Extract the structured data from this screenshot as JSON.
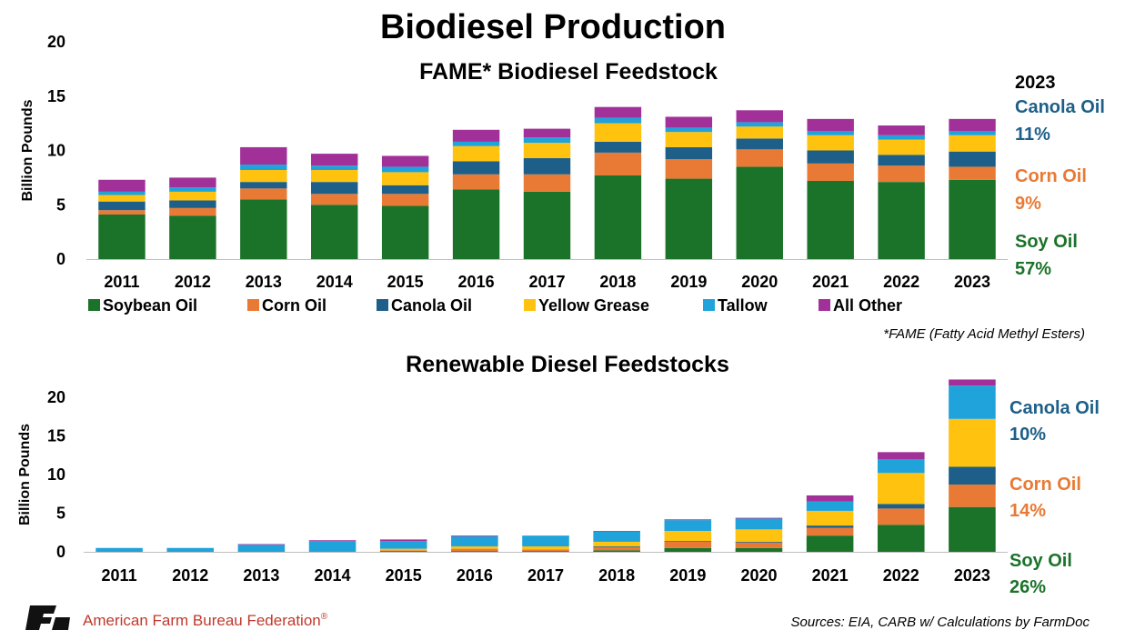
{
  "title": "Biodiesel Production",
  "colors": {
    "Soybean Oil": "#1b7229",
    "Corn Oil": "#e87a35",
    "Canola Oil": "#1d5f88",
    "Yellow Grease": "#ffc20e",
    "Tallow": "#20a3db",
    "All Other": "#a13199",
    "canola_ann": "#1d5f88",
    "corn_ann": "#e87a35",
    "soy_ann": "#1b7229",
    "logo": "#c0392b"
  },
  "legend": [
    "Soybean Oil",
    "Corn Oil",
    "Canola Oil",
    "Yellow Grease",
    "Tallow",
    "All Other"
  ],
  "footnote": "*FAME (Fatty Acid Methyl Esters)",
  "sources": "Sources: EIA, CARB w/ Calculations by FarmDoc",
  "logo": {
    "icon": "fb-logo-icon",
    "text": "American Farm Bureau Federation",
    "mark": "®"
  },
  "chart_data": [
    {
      "type": "bar",
      "stacked": true,
      "title": "FAME* Biodiesel Feedstock",
      "xlabel": "",
      "ylabel": "Billion Pounds",
      "ylim": [
        0,
        20
      ],
      "yticks": [
        0,
        5,
        10,
        15,
        20
      ],
      "categories": [
        "2011",
        "2012",
        "2013",
        "2014",
        "2015",
        "2016",
        "2017",
        "2018",
        "2019",
        "2020",
        "2021",
        "2022",
        "2023"
      ],
      "series": [
        {
          "name": "Soybean Oil",
          "values": [
            4.1,
            4.0,
            5.5,
            5.0,
            4.9,
            6.4,
            6.2,
            7.7,
            7.4,
            8.5,
            7.2,
            7.1,
            7.3
          ]
        },
        {
          "name": "Corn Oil",
          "values": [
            0.4,
            0.7,
            1.0,
            1.0,
            1.1,
            1.4,
            1.6,
            2.1,
            1.8,
            1.6,
            1.6,
            1.5,
            1.2
          ]
        },
        {
          "name": "Canola Oil",
          "values": [
            0.8,
            0.7,
            0.6,
            1.1,
            0.8,
            1.2,
            1.5,
            1.0,
            1.1,
            1.0,
            1.2,
            1.0,
            1.4
          ]
        },
        {
          "name": "Yellow Grease",
          "values": [
            0.6,
            0.8,
            1.1,
            1.1,
            1.2,
            1.4,
            1.4,
            1.7,
            1.4,
            1.1,
            1.4,
            1.4,
            1.5
          ]
        },
        {
          "name": "Tallow",
          "values": [
            0.3,
            0.4,
            0.5,
            0.4,
            0.5,
            0.4,
            0.5,
            0.5,
            0.4,
            0.4,
            0.4,
            0.4,
            0.4
          ]
        },
        {
          "name": "All Other",
          "values": [
            1.1,
            0.9,
            1.6,
            1.1,
            1.0,
            1.1,
            0.8,
            1.0,
            1.0,
            1.1,
            1.1,
            0.9,
            1.1
          ]
        }
      ],
      "annotations": {
        "year": "2023",
        "items": [
          {
            "label": "Canola Oil",
            "pct": "11%"
          },
          {
            "label": "Corn Oil",
            "pct": "9%"
          },
          {
            "label": "Soy Oil",
            "pct": "57%"
          }
        ]
      }
    },
    {
      "type": "bar",
      "stacked": true,
      "title": "Renewable Diesel Feedstocks",
      "xlabel": "",
      "ylabel": "Billion Pounds",
      "ylim": [
        0,
        22
      ],
      "yticks": [
        0,
        5,
        10,
        15,
        20
      ],
      "categories": [
        "2011",
        "2012",
        "2013",
        "2014",
        "2015",
        "2016",
        "2017",
        "2018",
        "2019",
        "2020",
        "2021",
        "2022",
        "2023"
      ],
      "series": [
        {
          "name": "Soybean Oil",
          "values": [
            0.0,
            0.0,
            0.0,
            0.0,
            0.1,
            0.1,
            0.1,
            0.2,
            0.5,
            0.5,
            2.1,
            3.5,
            5.8
          ]
        },
        {
          "name": "Corn Oil",
          "values": [
            0.0,
            0.0,
            0.0,
            0.0,
            0.1,
            0.3,
            0.2,
            0.4,
            0.8,
            0.7,
            1.0,
            2.1,
            2.9
          ]
        },
        {
          "name": "Canola Oil",
          "values": [
            0.0,
            0.0,
            0.0,
            0.0,
            0.0,
            0.0,
            0.0,
            0.1,
            0.1,
            0.1,
            0.3,
            0.6,
            2.3
          ]
        },
        {
          "name": "Yellow Grease",
          "values": [
            0.0,
            0.0,
            0.0,
            0.0,
            0.2,
            0.3,
            0.4,
            0.6,
            1.3,
            1.6,
            1.9,
            4.0,
            6.2
          ]
        },
        {
          "name": "Tallow",
          "values": [
            0.5,
            0.5,
            0.9,
            1.4,
            1.0,
            1.3,
            1.4,
            1.3,
            1.4,
            1.4,
            1.2,
            1.8,
            4.3
          ]
        },
        {
          "name": "All Other",
          "values": [
            0.0,
            0.0,
            0.1,
            0.1,
            0.2,
            0.1,
            0.0,
            0.1,
            0.1,
            0.1,
            0.8,
            0.9,
            0.8
          ]
        }
      ],
      "annotations": {
        "items": [
          {
            "label": "Canola Oil",
            "pct": "10%"
          },
          {
            "label": "Corn Oil",
            "pct": "14%"
          },
          {
            "label": "Soy Oil",
            "pct": "26%"
          }
        ]
      }
    }
  ]
}
